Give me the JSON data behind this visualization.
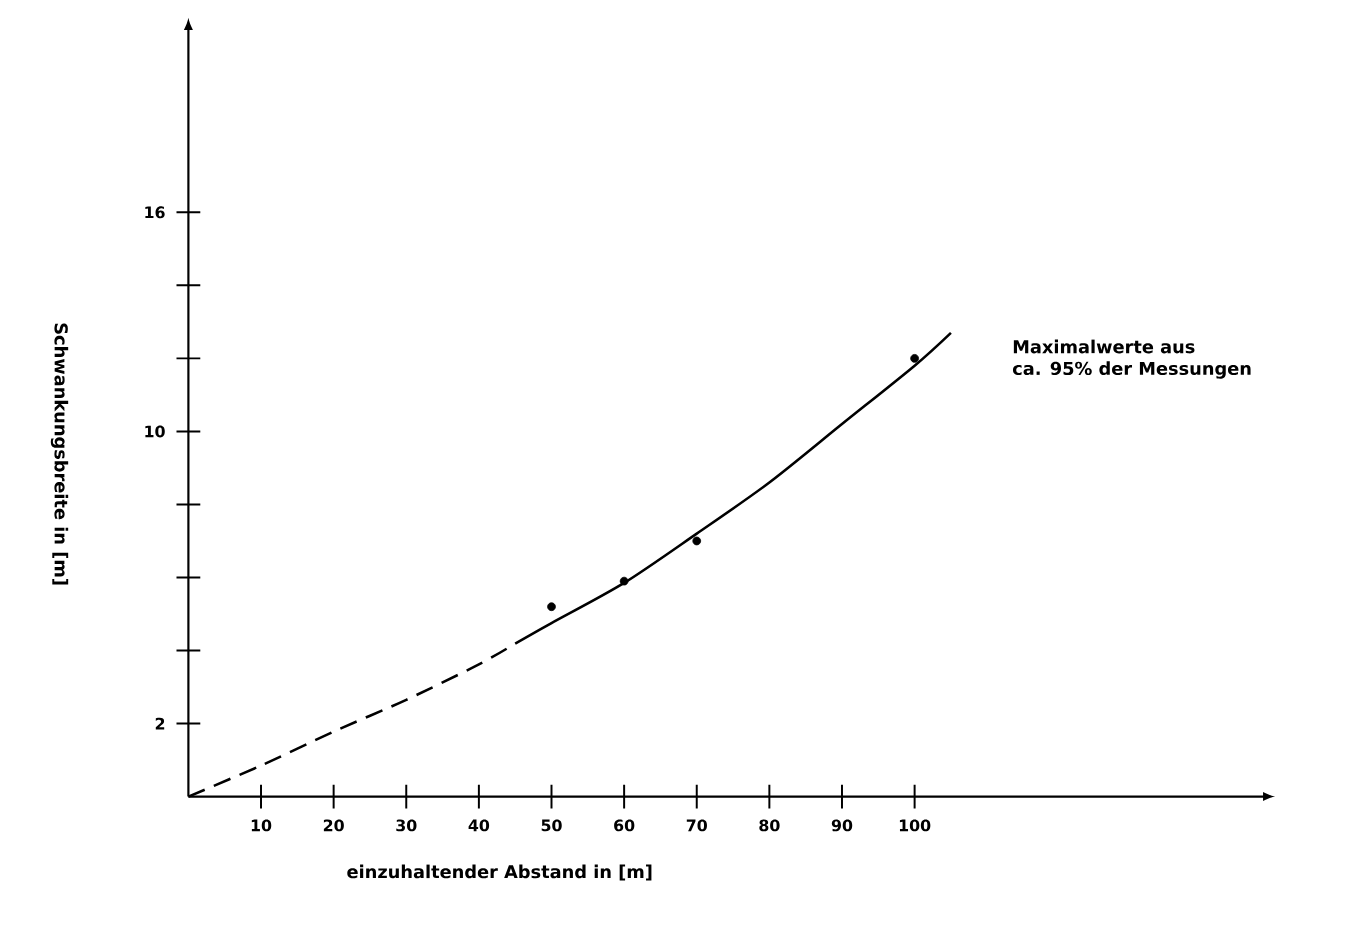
{
  "chart_data": {
    "type": "line",
    "xlabel": "einzuhaltender Abstand in [m]",
    "ylabel": "Schwankungsbreite in [m]",
    "annotations": [
      "Maximalwerte aus\nca. 95% der Messungen"
    ],
    "xlim": [
      0,
      148
    ],
    "ylim": [
      0,
      21
    ],
    "xticks": [
      10,
      20,
      30,
      40,
      50,
      60,
      70,
      80,
      90,
      100
    ],
    "yticks": [
      2,
      {
        "value": 4,
        "label": null
      },
      {
        "value": 6,
        "label": null
      },
      {
        "value": 8,
        "label": null
      },
      10,
      {
        "value": 12,
        "label": null
      },
      {
        "value": 14,
        "label": null
      },
      16
    ],
    "series": [
      {
        "line_style": "dashed",
        "marker": "none",
        "color": "#000000",
        "x": [
          0,
          10,
          20,
          30,
          40,
          45
        ],
        "values": [
          0,
          0.85,
          1.78,
          2.65,
          3.62,
          4.19
        ]
      },
      {
        "line_style": "solid",
        "marker": "none",
        "color": "#000000",
        "x": [
          45,
          50,
          60,
          70,
          80,
          90,
          100,
          105
        ],
        "values": [
          4.19,
          4.75,
          5.85,
          7.2,
          8.6,
          10.2,
          11.8,
          12.7
        ]
      },
      {
        "type": "scatter",
        "marker": "circle",
        "color": "#000000",
        "x": [
          50,
          60,
          70,
          100
        ],
        "values": [
          5.2,
          5.9,
          7.0,
          12.0
        ]
      }
    ]
  }
}
